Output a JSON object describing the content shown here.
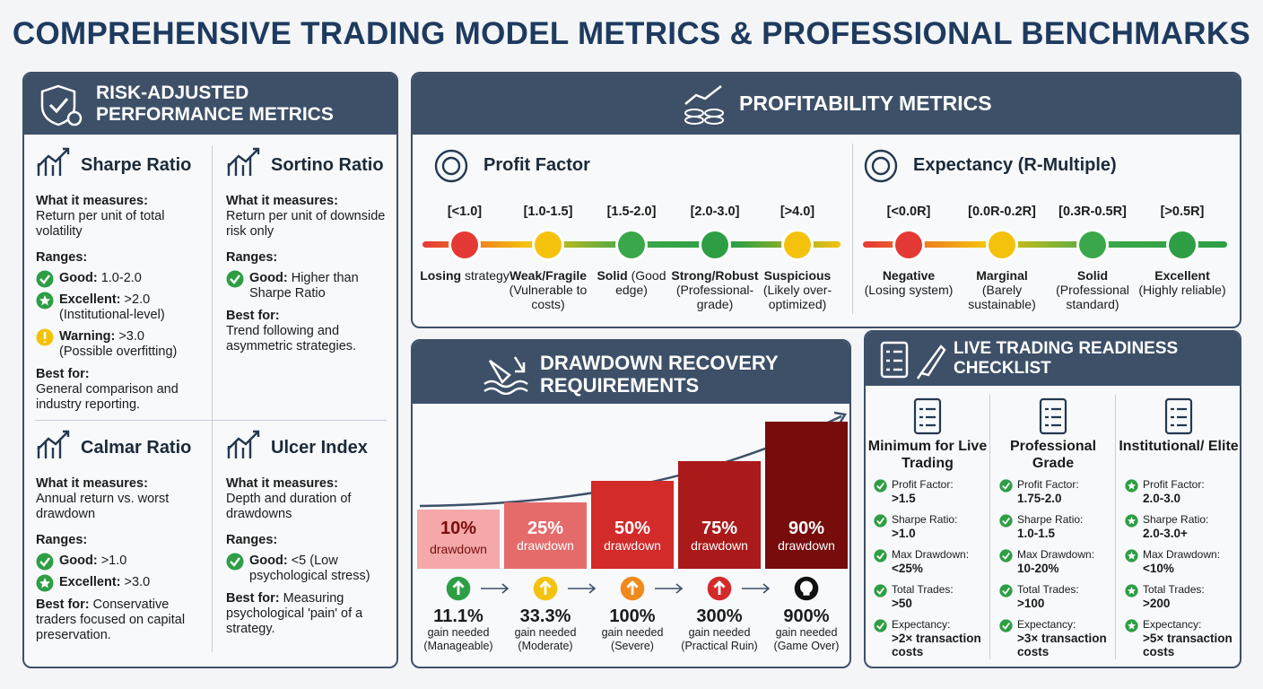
{
  "title": "COMPREHENSIVE TRADING MODEL METRICS & PROFESSIONAL BENCHMARKS",
  "risk": {
    "header": "RISK-ADJUSTED PERFORMANCE METRICS",
    "cards": [
      {
        "name": "Sharpe Ratio",
        "what_label": "What it measures:",
        "what": "Return per unit of total volatility",
        "ranges_label": "Ranges:",
        "ranges": [
          {
            "label": "Good:",
            "text": "1.0-2.0",
            "color": "#2e9e44"
          },
          {
            "label": "Excellent:",
            "text": ">2.0 (Institutional-level)",
            "color": "#2e9e44"
          },
          {
            "label": "Warning:",
            "text": ">3.0 (Possible overfitting)",
            "color": "#f2c200"
          }
        ],
        "best_label": "Best for:",
        "best": "General comparison and industry reporting."
      },
      {
        "name": "Sortino Ratio",
        "what_label": "What it measures:",
        "what": "Return per unit of downside risk only",
        "ranges_label": "Ranges:",
        "ranges": [
          {
            "label": "Good:",
            "text": "Higher than Sharpe Ratio",
            "color": "#2e9e44"
          }
        ],
        "best_label": "Best for:",
        "best": "Trend following and asymmetric strategies."
      },
      {
        "name": "Calmar Ratio",
        "what_label": "What it measures:",
        "what": "Annual return vs. worst drawdown",
        "ranges_label": "Ranges:",
        "ranges": [
          {
            "label": "Good:",
            "text": ">1.0",
            "color": "#2e9e44"
          },
          {
            "label": "Excellent:",
            "text": ">3.0",
            "color": "#2e9e44"
          }
        ],
        "best_label": "Best for:",
        "best": "Conservative traders focused on capital preservation."
      },
      {
        "name": "Ulcer Index",
        "what_label": "What it measures:",
        "what": "Depth and duration of drawdowns",
        "ranges_label": "Ranges:",
        "ranges": [
          {
            "label": "Good:",
            "text": "<5 (Low psychological stress)",
            "color": "#2e9e44"
          }
        ],
        "best_label": "Best for:",
        "best": "Measuring psychological 'pain' of a strategy."
      }
    ]
  },
  "profitability": {
    "header": "PROFITABILITY METRICS",
    "profit_factor": {
      "name": "Profit Factor",
      "items": [
        {
          "range": "[<1.0]",
          "label": "Losing strategy",
          "color": "#e53935"
        },
        {
          "range": "[1.0-1.5]",
          "label": "Weak/Fragile (Vulnerable to costs)",
          "color": "#f4c20d"
        },
        {
          "range": "[1.5-2.0]",
          "label": "Solid (Good edge)",
          "color": "#3aa84a"
        },
        {
          "range": "[2.0-3.0]",
          "label": "Strong/Robust (Professional-grade)",
          "color": "#2e9e44"
        },
        {
          "range": "[>4.0]",
          "label": "Suspicious (Likely over-optimized)",
          "color": "#f4c20d"
        }
      ]
    },
    "expectancy": {
      "name": "Expectancy (R-Multiple)",
      "items": [
        {
          "range": "[<0.0R]",
          "label": "Negative (Losing system)",
          "color": "#e53935"
        },
        {
          "range": "[0.0R-0.2R]",
          "label": "Marginal (Barely sustainable)",
          "color": "#f4c20d"
        },
        {
          "range": "[0.3R-0.5R]",
          "label": "Solid (Professional standard)",
          "color": "#3aa84a"
        },
        {
          "range": "[>0.5R]",
          "label": "Excellent (Highly reliable)",
          "color": "#2e9e44"
        }
      ]
    }
  },
  "drawdown": {
    "header": "DRAWDOWN RECOVERY REQUIREMENTS",
    "bars": [
      {
        "pct": "10%",
        "unit": "drawdown",
        "gain": "11.1%",
        "gain_label": "gain needed",
        "note": "(Manageable)",
        "color": "#f4a8a8",
        "icon_color": "#2e9e44"
      },
      {
        "pct": "25%",
        "unit": "drawdown",
        "gain": "33.3%",
        "gain_label": "gain needed",
        "note": "(Moderate)",
        "color": "#e56b6b",
        "icon_color": "#f4c20d"
      },
      {
        "pct": "50%",
        "unit": "drawdown",
        "gain": "100%",
        "gain_label": "gain needed",
        "note": "(Severe)",
        "color": "#d32a2a",
        "icon_color": "#f08a1c"
      },
      {
        "pct": "75%",
        "unit": "drawdown",
        "gain": "300%",
        "gain_label": "gain needed",
        "note": "(Practical Ruin)",
        "color": "#ab1a1a",
        "icon_color": "#d32a2a"
      },
      {
        "pct": "90%",
        "unit": "drawdown",
        "gain": "900%",
        "gain_label": "gain needed",
        "note": "(Game Over)",
        "color": "#760c0c",
        "icon_color": "#111111"
      }
    ]
  },
  "checklist": {
    "header": "LIVE TRADING READINESS CHECKLIST",
    "columns": [
      {
        "title": "Minimum for Live Trading",
        "items": [
          {
            "label": "Profit Factor:",
            "value": ">1.5"
          },
          {
            "label": "Sharpe Ratio:",
            "value": ">1.0"
          },
          {
            "label": "Max Drawdown:",
            "value": "<25%"
          },
          {
            "label": "Total Trades:",
            "value": ">50"
          },
          {
            "label": "Expectancy:",
            "value": ">2× transaction costs"
          }
        ]
      },
      {
        "title": "Professional Grade",
        "items": [
          {
            "label": "Profit Factor:",
            "value": "1.75-2.0"
          },
          {
            "label": "Sharpe Ratio:",
            "value": "1.0-1.5"
          },
          {
            "label": "Max Drawdown:",
            "value": "10-20%"
          },
          {
            "label": "Total Trades:",
            "value": ">100"
          },
          {
            "label": "Expectancy:",
            "value": ">3× transaction costs"
          }
        ]
      },
      {
        "title": "Institutional/ Elite",
        "items": [
          {
            "label": "Profit Factor:",
            "value": "2.0-3.0"
          },
          {
            "label": "Sharpe Ratio:",
            "value": "2.0-3.0+"
          },
          {
            "label": "Max Drawdown:",
            "value": "<10%"
          },
          {
            "label": "Total Trades:",
            "value": ">200"
          },
          {
            "label": "Expectancy:",
            "value": ">5× transaction costs"
          }
        ]
      }
    ]
  }
}
